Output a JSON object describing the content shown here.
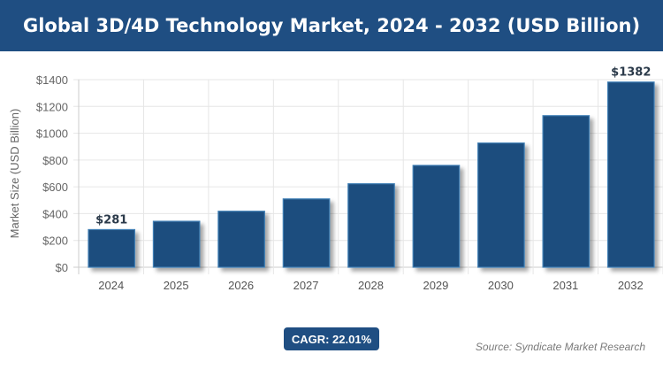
{
  "header": {
    "title": "Global 3D/4D Technology Market, 2024 - 2032 (USD Billion)"
  },
  "chart_data": {
    "type": "bar",
    "title": "Global 3D/4D Technology Market, 2024 - 2032 (USD Billion)",
    "xlabel": "",
    "ylabel": "Market Size (USD Billion)",
    "categories": [
      "2024",
      "2025",
      "2026",
      "2027",
      "2028",
      "2029",
      "2030",
      "2031",
      "2032"
    ],
    "values": [
      281,
      343,
      418,
      510,
      623,
      760,
      927,
      1131,
      1382
    ],
    "data_labels": {
      "0": "$281",
      "8": "$1382"
    },
    "ylim": [
      0,
      1400
    ],
    "yticks": [
      0,
      200,
      400,
      600,
      800,
      1000,
      1200,
      1400
    ],
    "ytick_labels": [
      "$0",
      "$200",
      "$400",
      "$600",
      "$800",
      "$1000",
      "$1200",
      "$1400"
    ],
    "grid": true,
    "bar_color": "#1f4e7e",
    "bar_border_color": "#3f7fb5"
  },
  "footer": {
    "cagr": "CAGR: 22.01%",
    "source": "Source: Syndicate Market Research"
  }
}
